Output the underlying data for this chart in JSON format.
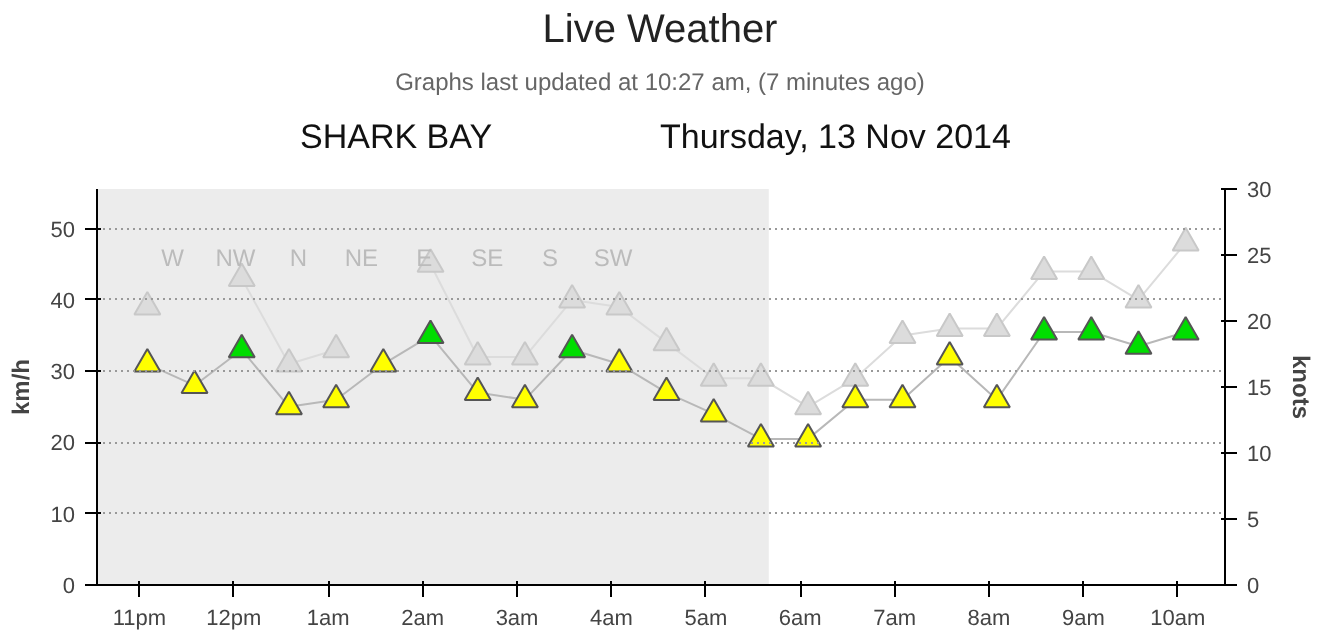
{
  "chart_data": {
    "type": "line",
    "title": "Live Weather",
    "subtitle": "Graphs last updated at 10:27 am, (7 minutes ago)",
    "annotations": [
      "SHARK BAY",
      "Thursday, 13 Nov 2014",
      "W",
      "NW",
      "N",
      "NE",
      "E",
      "SE",
      "S",
      "SW"
    ],
    "x": [
      "2014-11-12T23:05",
      "2014-11-12T23:35",
      "2014-11-13T00:05",
      "2014-11-13T00:35",
      "2014-11-13T01:05",
      "2014-11-13T01:35",
      "2014-11-13T02:05",
      "2014-11-13T02:35",
      "2014-11-13T03:05",
      "2014-11-13T03:35",
      "2014-11-13T04:05",
      "2014-11-13T04:35",
      "2014-11-13T05:05",
      "2014-11-13T05:35",
      "2014-11-13T06:05",
      "2014-11-13T06:35",
      "2014-11-13T07:05",
      "2014-11-13T07:35",
      "2014-11-13T08:05",
      "2014-11-13T08:35",
      "2014-11-13T09:05",
      "2014-11-13T09:35",
      "2014-11-13T10:05"
    ],
    "series": [
      {
        "color": "#dcdcdc",
        "marker": "triangle",
        "values": [
          39,
          null,
          43,
          31,
          33,
          null,
          45,
          32,
          32,
          40,
          39,
          34,
          29,
          29,
          25,
          29,
          35,
          36,
          36,
          44,
          44,
          40,
          48
        ]
      },
      {
        "color": "#b8b8b8",
        "marker": "triangle",
        "values": [
          31,
          28,
          33,
          25,
          26,
          31,
          35,
          27,
          26,
          33,
          31,
          27,
          24,
          20.5,
          20.5,
          26,
          26,
          32,
          26,
          35.5,
          35.5,
          33.5,
          35.5
        ],
        "colors": [
          "#ffff00",
          "#ffff00",
          "#00dd00",
          "#ffff00",
          "#ffff00",
          "#ffff00",
          "#00dd00",
          "#ffff00",
          "#ffff00",
          "#00dd00",
          "#ffff00",
          "#ffff00",
          "#ffff00",
          "#ffff00",
          "#ffff00",
          "#ffff00",
          "#ffff00",
          "#ffff00",
          "#ffff00",
          "#00dd00",
          "#00dd00",
          "#00dd00",
          "#00dd00"
        ]
      }
    ],
    "xlim": [
      "2014-11-12T22:33",
      "2014-11-13T10:30"
    ],
    "xticks": [
      {
        "value": "2014-11-12T23:00",
        "label": "11pm"
      },
      {
        "value": "2014-11-13T00:00",
        "label": "12pm"
      },
      {
        "value": "2014-11-13T01:00",
        "label": "1am"
      },
      {
        "value": "2014-11-13T02:00",
        "label": "2am"
      },
      {
        "value": "2014-11-13T03:00",
        "label": "3am"
      },
      {
        "value": "2014-11-13T04:00",
        "label": "4am"
      },
      {
        "value": "2014-11-13T05:00",
        "label": "5am"
      },
      {
        "value": "2014-11-13T06:00",
        "label": "6am"
      },
      {
        "value": "2014-11-13T07:00",
        "label": "7am"
      },
      {
        "value": "2014-11-13T08:00",
        "label": "8am"
      },
      {
        "value": "2014-11-13T09:00",
        "label": "9am"
      },
      {
        "value": "2014-11-13T10:00",
        "label": "10am"
      }
    ],
    "ylim": [
      0,
      55.56
    ],
    "yticks": [
      0,
      10,
      20,
      30,
      40,
      50
    ],
    "ylabel": "km/h",
    "y2lim": [
      0,
      30
    ],
    "y2ticks": [
      0,
      5,
      10,
      15,
      20,
      25,
      30
    ],
    "y2label": "knots",
    "bands": [
      {
        "axis": "x",
        "from": "2014-11-12T22:33",
        "to": "2014-11-13T05:40",
        "color": "#ececec"
      }
    ],
    "grid": "y"
  }
}
